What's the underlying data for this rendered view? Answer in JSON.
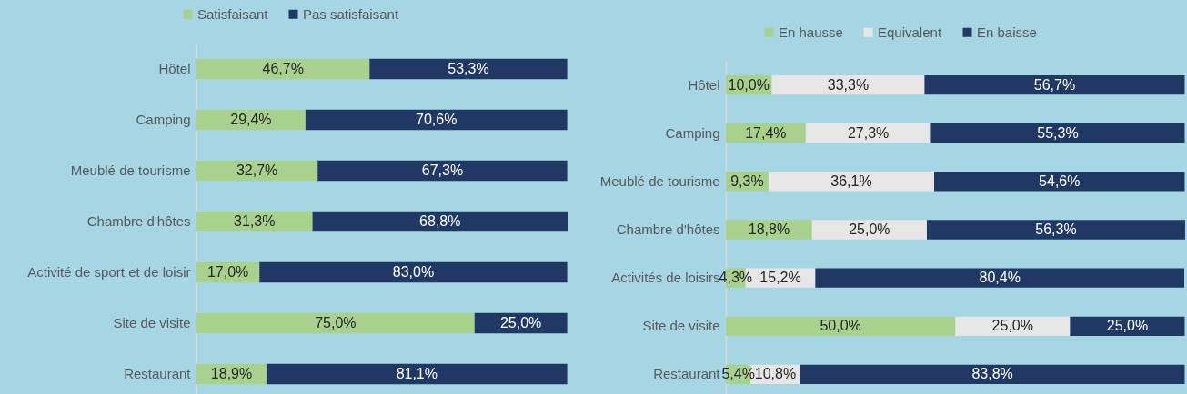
{
  "chart_data": [
    {
      "type": "bar",
      "orientation": "horizontal",
      "stacked": true,
      "legend": "top",
      "tick_labels": "y",
      "categories": [
        "Hôtel",
        "Camping",
        "Meublé de tourisme",
        "Chambre d'hôtes",
        "Activité de sport et de loisir",
        "Site de visite",
        "Restaurant"
      ],
      "series": [
        {
          "name": "Satisfaisant",
          "color": "#a9d18e",
          "values": [
            46.7,
            29.4,
            32.7,
            31.3,
            17.0,
            75.0,
            18.9
          ],
          "value_labels": [
            "46,7%",
            "29,4%",
            "32,7%",
            "31,3%",
            "17,0%",
            "75,0%",
            "18,9%"
          ]
        },
        {
          "name": "Pas satisfaisant",
          "color": "#203864",
          "values": [
            53.3,
            70.6,
            67.3,
            68.8,
            83.0,
            25.0,
            81.1
          ],
          "value_labels": [
            "53,3%",
            "70,6%",
            "67,3%",
            "68,8%",
            "83,0%",
            "25,0%",
            "81,1%"
          ]
        }
      ]
    },
    {
      "type": "bar",
      "orientation": "horizontal",
      "stacked": true,
      "legend": "top",
      "tick_labels": "y",
      "categories": [
        "Hôtel",
        "Camping",
        "Meublé de tourisme",
        "Chambre d'hôtes",
        "Activités de loisirs",
        "Site de visite",
        "Restaurant"
      ],
      "series": [
        {
          "name": "En hausse",
          "color": "#a9d18e",
          "values": [
            10.0,
            17.4,
            9.3,
            18.8,
            4.3,
            50.0,
            5.4
          ],
          "value_labels": [
            "10,0%",
            "17,4%",
            "9,3%",
            "18,8%",
            "4,3%",
            "50,0%",
            "5,4%"
          ]
        },
        {
          "name": "Equivalent",
          "color": "#e7e6e6",
          "values": [
            33.3,
            27.3,
            36.1,
            25.0,
            15.2,
            25.0,
            10.8
          ],
          "value_labels": [
            "33,3%",
            "27,3%",
            "36,1%",
            "25,0%",
            "15,2%",
            "25,0%",
            "10,8%"
          ]
        },
        {
          "name": "En baisse",
          "color": "#203864",
          "values": [
            56.7,
            55.3,
            54.6,
            56.3,
            80.4,
            25.0,
            83.8
          ],
          "value_labels": [
            "56,7%",
            "55,3%",
            "54,6%",
            "56,3%",
            "80,4%",
            "25,0%",
            "83,8%"
          ]
        }
      ]
    }
  ]
}
